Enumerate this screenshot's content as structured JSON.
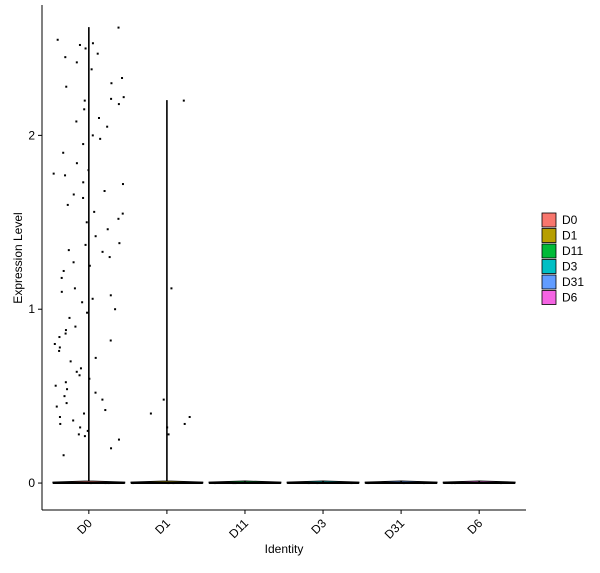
{
  "chart_data": {
    "type": "violin",
    "x_label": "Identity",
    "y_label": "Expression Level",
    "categories": [
      "D0",
      "D1",
      "D11",
      "D3",
      "D31",
      "D6"
    ],
    "ylim": [
      -0.155,
      2.75
    ],
    "yticks": [
      0,
      1,
      2
    ],
    "series": [
      {
        "name": "D0",
        "color": "#F8766D",
        "values": [
          2.62,
          2.55,
          2.53,
          2.52,
          2.5,
          2.47,
          2.45,
          2.42,
          2.38,
          2.33,
          2.3,
          2.28,
          2.22,
          2.21,
          2.2,
          2.18,
          2.15,
          2.1,
          2.08,
          2.05,
          2.0,
          1.98,
          1.95,
          1.9,
          1.84,
          1.8,
          1.78,
          1.77,
          1.73,
          1.72,
          1.68,
          1.66,
          1.64,
          1.6,
          1.56,
          1.55,
          1.52,
          1.5,
          1.46,
          1.42,
          1.38,
          1.37,
          1.34,
          1.33,
          1.3,
          1.27,
          1.25,
          1.22,
          1.18,
          1.12,
          1.1,
          1.08,
          1.06,
          1.04,
          1.0,
          0.98,
          0.95,
          0.9,
          0.88,
          0.86,
          0.84,
          0.82,
          0.8,
          0.78,
          0.76,
          0.72,
          0.7,
          0.66,
          0.64,
          0.62,
          0.6,
          0.58,
          0.56,
          0.54,
          0.52,
          0.5,
          0.48,
          0.46,
          0.44,
          0.42,
          0.4,
          0.38,
          0.36,
          0.34,
          0.32,
          0.3,
          0.28,
          0.27,
          0.25,
          0.2,
          0.16,
          0,
          0,
          0
        ]
      },
      {
        "name": "D1",
        "color": "#B79F00",
        "values": [
          2.2,
          1.12,
          0.48,
          0.4,
          0.38,
          0.34,
          0.32,
          0.28,
          0,
          0,
          0
        ]
      },
      {
        "name": "D11",
        "color": "#00BA38",
        "values": [
          0,
          0,
          0
        ]
      },
      {
        "name": "D3",
        "color": "#00BFC4",
        "values": [
          0,
          0,
          0
        ]
      },
      {
        "name": "D31",
        "color": "#619CFF",
        "values": [
          0,
          0,
          0
        ]
      },
      {
        "name": "D6",
        "color": "#F564E3",
        "values": [
          0,
          0,
          0
        ]
      }
    ]
  }
}
